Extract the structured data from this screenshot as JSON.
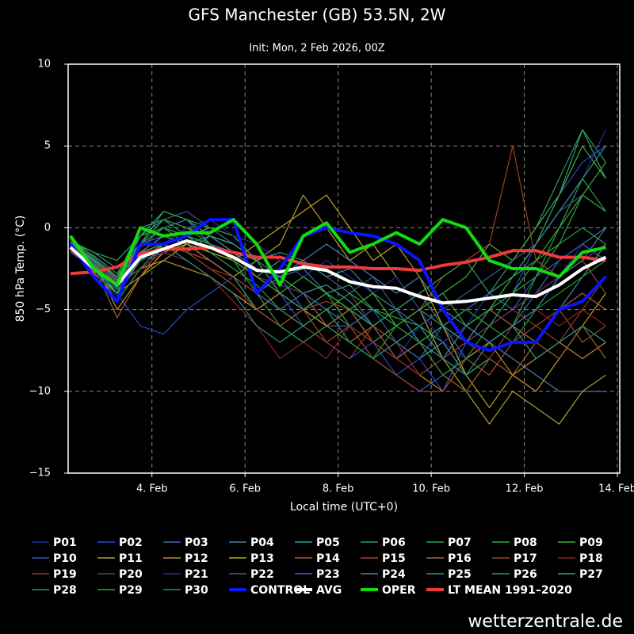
{
  "chart_data": {
    "type": "line",
    "title": "GFS Manchester (GB) 53.5N, 2W",
    "subtitle": "Init: Mon, 2 Feb 2026, 00Z",
    "xlabel": "Local time (UTC+0)",
    "ylabel": "850 hPa Temp. (°C)",
    "source": "wetterzentrale.de",
    "grid": true,
    "xlim": [
      2.2,
      14.05
    ],
    "xticks": [
      {
        "value": 4,
        "label": "4. Feb"
      },
      {
        "value": 6,
        "label": "6. Feb"
      },
      {
        "value": 8,
        "label": "8. Feb"
      },
      {
        "value": 10,
        "label": "10. Feb"
      },
      {
        "value": 12,
        "label": "12. Feb"
      },
      {
        "value": 14,
        "label": "14. Feb"
      }
    ],
    "ylim": [
      -15,
      10
    ],
    "yticks": [
      {
        "value": -15,
        "label": "−15"
      },
      {
        "value": -10,
        "label": "−10"
      },
      {
        "value": -5,
        "label": "−5"
      },
      0,
      5,
      10
    ],
    "x": [
      2.25,
      2.75,
      3.25,
      3.75,
      4.25,
      4.75,
      5.25,
      5.75,
      6.25,
      6.75,
      7.25,
      7.75,
      8.25,
      8.75,
      9.25,
      9.75,
      10.25,
      10.75,
      11.25,
      11.75,
      12.25,
      12.75,
      13.25,
      13.75
    ],
    "series": [
      {
        "name": "P01",
        "color": "#1a2fa0",
        "values": [
          -1,
          -2,
          -3,
          -1.5,
          -1,
          -0.5,
          -1,
          -2,
          -3,
          -4,
          -5,
          -6,
          -5,
          -7,
          -8,
          -6,
          -7,
          -8,
          -9,
          -7,
          -5,
          -3,
          -1,
          -2
        ]
      },
      {
        "name": "P02",
        "color": "#2848c8",
        "values": [
          -1.5,
          -2.5,
          -4,
          -6,
          -6.5,
          -5,
          -4,
          -3,
          -5,
          -4,
          -6,
          -7,
          -8,
          -7,
          -9,
          -8,
          -10,
          -7,
          -6,
          -4,
          -1,
          2,
          4,
          5
        ]
      },
      {
        "name": "P03",
        "color": "#3a6ab8",
        "values": [
          -1,
          -2,
          -3,
          -1,
          -0.5,
          -1,
          -2,
          -3,
          -4,
          -3,
          -5,
          -6,
          -6,
          -7,
          -8,
          -7,
          -6,
          -8,
          -7,
          -6,
          -4,
          -2,
          -1,
          0
        ]
      },
      {
        "name": "P04",
        "color": "#4a7fa8",
        "values": [
          -0.8,
          -1.5,
          -2.5,
          -1,
          0,
          0.5,
          -1,
          -1.5,
          -2,
          -3,
          -2.5,
          -4,
          -5,
          -6,
          -5,
          -7,
          -8,
          -6,
          -7,
          -8,
          -9,
          -10,
          -10,
          -10
        ]
      },
      {
        "name": "P05",
        "color": "#3a90a8",
        "values": [
          -1.2,
          -2,
          -3.5,
          -2,
          -1,
          -1.5,
          -0.5,
          -1,
          -2,
          -3,
          -4,
          -3.5,
          -4.5,
          -6,
          -7,
          -8,
          -7,
          -9,
          -8,
          -6,
          -7,
          -5,
          -3,
          -1
        ]
      },
      {
        "name": "P06",
        "color": "#2a9a6a",
        "values": [
          -0.7,
          -1.8,
          -3,
          0,
          0.5,
          -0.5,
          -1.5,
          -2,
          -3,
          -2,
          -3,
          -4,
          -3.5,
          -5,
          -6,
          -5,
          -6,
          -5,
          -4,
          -2,
          0,
          3,
          6,
          4
        ]
      },
      {
        "name": "P07",
        "color": "#2aa050",
        "values": [
          -1,
          -2.2,
          -4,
          -1,
          1,
          0.5,
          0,
          -1,
          -2,
          -4,
          -5,
          -6,
          -5,
          -6,
          -7,
          -6,
          -8,
          -9,
          -8,
          -6,
          -3,
          0,
          3,
          1
        ]
      },
      {
        "name": "P08",
        "color": "#30a840",
        "values": [
          -0.9,
          -1.5,
          -2,
          -0.5,
          0,
          -1,
          -2,
          -3,
          -5,
          -6,
          -5,
          -4,
          -6,
          -5,
          -5.5,
          -6,
          -7,
          -6,
          -5,
          -4,
          -2,
          -1,
          2,
          4
        ]
      },
      {
        "name": "P09",
        "color": "#40b040",
        "values": [
          -1.1,
          -2,
          -3,
          -1.5,
          -1,
          -0.5,
          0,
          -0.5,
          -2,
          -3,
          -4,
          -5,
          -6,
          -7,
          -6,
          -5,
          -4,
          -3,
          -1,
          -2,
          0,
          2,
          5,
          3
        ]
      },
      {
        "name": "P10",
        "color": "#2060c0",
        "values": [
          -1.3,
          -2.5,
          -3.8,
          -2,
          -1.5,
          -2,
          -3,
          -4,
          -5,
          -6,
          -7,
          -6,
          -7,
          -8,
          -9,
          -10,
          -9,
          -8,
          -7,
          -6,
          -8,
          -7,
          -6,
          -7
        ]
      },
      {
        "name": "P11",
        "color": "#b0a030",
        "values": [
          -1,
          -2,
          -3.5,
          -2.5,
          -2,
          -1,
          -2,
          -3,
          -2,
          -1,
          2,
          0,
          -2,
          -1,
          -3,
          -5,
          -8,
          -10,
          -12,
          -10,
          -11,
          -12,
          -10,
          -9
        ]
      },
      {
        "name": "P12",
        "color": "#c08a30",
        "values": [
          -1.2,
          -2.8,
          -4,
          -3,
          -2,
          -2.5,
          -3,
          -4,
          -5,
          -4,
          -5,
          -6,
          -5,
          -7,
          -8,
          -9,
          -10,
          -8,
          -7,
          -9,
          -8,
          -7,
          -8,
          -7
        ]
      },
      {
        "name": "P13",
        "color": "#c0a020",
        "values": [
          -0.9,
          -2,
          -5,
          -3,
          -1.5,
          -1,
          -1.5,
          -2,
          -1,
          0,
          1,
          2,
          0,
          -2,
          -1,
          -3,
          -6,
          -9,
          -11,
          -9,
          -10,
          -8,
          -6,
          -4
        ]
      },
      {
        "name": "P14",
        "color": "#a06030",
        "values": [
          -1,
          -2.3,
          -5.5,
          -3,
          -1,
          -1.5,
          -2,
          -3,
          -4,
          -6,
          -7,
          -6,
          -5,
          -7,
          -8,
          -7,
          -9,
          -10,
          -8,
          -9,
          -7,
          -8,
          -6,
          -8
        ]
      },
      {
        "name": "P15",
        "color": "#a04828",
        "values": [
          -1.4,
          -2.6,
          -3.2,
          -2,
          -1,
          -1.5,
          -2.5,
          -3.5,
          -5,
          -6,
          -5,
          -7,
          -6,
          -8,
          -9,
          -10,
          -10,
          -8,
          -9,
          -7,
          -6,
          -5,
          -7,
          -6
        ]
      },
      {
        "name": "P16",
        "color": "#b06048",
        "values": [
          -1,
          -2,
          -3,
          -1.5,
          -0.5,
          -1,
          -2,
          -3,
          -4,
          -5,
          -4,
          -6,
          -7,
          -6,
          -8,
          -7,
          -6,
          -7,
          -5,
          -6,
          -7,
          -5,
          -4,
          -5
        ]
      },
      {
        "name": "P17",
        "color": "#a04020",
        "values": [
          -1.1,
          -2.4,
          -3.6,
          -2,
          -1,
          0,
          -0.5,
          -1.5,
          -3,
          -4,
          -5,
          -4.5,
          -5,
          -4,
          -6,
          -5,
          -3,
          -2,
          -1,
          5,
          -2,
          -3,
          -2,
          -4
        ]
      },
      {
        "name": "P18",
        "color": "#902020",
        "values": [
          -1.2,
          -2.1,
          -3.4,
          -2.5,
          -1.5,
          -2,
          -3,
          -4.5,
          -6,
          -8,
          -7,
          -8,
          -6,
          -7,
          -8,
          -9,
          -8,
          -7,
          -8,
          -6,
          -5,
          -6,
          -5,
          -6
        ]
      },
      {
        "name": "P19",
        "color": "#8a3a28",
        "values": [
          -0.8,
          -1.9,
          -3.1,
          -2,
          -1,
          -1.5,
          -2.5,
          -3,
          -4,
          -5,
          -6,
          -7,
          -8,
          -6,
          -7,
          -9,
          -8,
          -7,
          -6,
          -5,
          -6,
          -7,
          -5,
          -3
        ]
      },
      {
        "name": "P20",
        "color": "#6a3a60",
        "values": [
          -1,
          -2.2,
          -3.3,
          -1.8,
          -1,
          -0.5,
          -1,
          -2,
          -3,
          -3.5,
          -4,
          -5,
          -4,
          -6,
          -5,
          -6,
          -5,
          -7,
          -6,
          -5,
          -4,
          -3,
          -2,
          -1
        ]
      },
      {
        "name": "P21",
        "color": "#20309a",
        "values": [
          -1.3,
          -2.7,
          -4.2,
          -2,
          -1,
          0,
          0.5,
          -0.5,
          -1,
          -2,
          -3,
          -2,
          -3,
          -4,
          -3,
          -5,
          -7,
          -6,
          -4,
          -3,
          -1,
          1,
          3,
          6
        ]
      },
      {
        "name": "P22",
        "color": "#3a5a90",
        "values": [
          -1,
          -2,
          -3.3,
          -1,
          0.5,
          1,
          0,
          -1,
          -2,
          -3,
          -2,
          -3,
          -4,
          -3,
          -5,
          -6,
          -5,
          -4,
          -3,
          -2,
          -1,
          1,
          2,
          1
        ]
      },
      {
        "name": "P23",
        "color": "#3060b0",
        "values": [
          -0.9,
          -2.1,
          -3.7,
          -1.2,
          0,
          -0.5,
          -1,
          -2,
          -4,
          -5,
          -4,
          -5,
          -6,
          -5,
          -7,
          -8,
          -6,
          -5,
          -4,
          -5,
          -3,
          -2,
          -1,
          -2
        ]
      },
      {
        "name": "P24",
        "color": "#4080b0",
        "values": [
          -1.1,
          -2.3,
          -3.5,
          -0.5,
          0.5,
          0,
          -0.5,
          -1.5,
          -2.5,
          -3,
          -2,
          -1,
          -2,
          -3,
          -4,
          -3,
          -5,
          -6,
          -7,
          -6,
          -5,
          -3,
          -2,
          0
        ]
      },
      {
        "name": "P25",
        "color": "#309090",
        "values": [
          -1,
          -1.9,
          -3.2,
          -1.5,
          -0.5,
          -1,
          -0.5,
          -1,
          -2,
          -1.5,
          -2,
          -3,
          -2.5,
          -4,
          -5,
          -4,
          -6,
          -7,
          -5,
          -3,
          -1,
          1,
          3,
          5
        ]
      },
      {
        "name": "P26",
        "color": "#2a9078",
        "values": [
          -1.2,
          -2.4,
          -4.5,
          -2.5,
          -1,
          -2,
          -3,
          -4,
          -6,
          -7,
          -6,
          -5,
          -7,
          -8,
          -7,
          -6,
          -8,
          -9,
          -7,
          -6,
          -8,
          -7,
          -6,
          -7
        ]
      },
      {
        "name": "P27",
        "color": "#30a060",
        "values": [
          -0.9,
          -1.7,
          -2.8,
          -0.5,
          1,
          0.5,
          -0.5,
          -1,
          -2,
          -4,
          -5,
          -4,
          -5,
          -6,
          -5,
          -4,
          -3,
          -2,
          -4,
          -3,
          -1,
          2,
          6,
          3
        ]
      },
      {
        "name": "P28",
        "color": "#28a048",
        "values": [
          -1,
          -2,
          -3,
          -1,
          0,
          -0.5,
          -1.5,
          -2.5,
          -3.5,
          -5,
          -6,
          -5,
          -4,
          -5,
          -6,
          -7,
          -6,
          -5,
          -6,
          -4,
          -3,
          -1,
          0,
          -1
        ]
      },
      {
        "name": "P29",
        "color": "#38a838",
        "values": [
          -1.1,
          -2.5,
          -4,
          -2,
          -1,
          -0.5,
          -1,
          -2,
          -3,
          -4,
          -3,
          -4,
          -5,
          -4,
          -6,
          -5,
          -4,
          -6,
          -5,
          -3,
          -2,
          0,
          2,
          1
        ]
      },
      {
        "name": "P30",
        "color": "#209a30",
        "values": [
          -1.2,
          -2.2,
          -3.6,
          -1,
          0.5,
          0,
          -1,
          -2,
          -4,
          -6,
          -7,
          -6,
          -7,
          -8,
          -6,
          -7,
          -9,
          -8,
          -6,
          -7,
          -5,
          -4,
          -3,
          -2
        ]
      },
      {
        "name": "CONTROL",
        "color": "#0a14ff",
        "values": [
          -1,
          -3,
          -4.5,
          -1,
          -1,
          -0.5,
          0.5,
          0.5,
          -4,
          -2.5,
          -0.5,
          0,
          -0.3,
          -0.5,
          -1,
          -2,
          -5,
          -7,
          -7.5,
          -7,
          -7,
          -5,
          -4.5,
          -3
        ]
      },
      {
        "name": "AVG",
        "color": "#ffffff",
        "values": [
          -1.2,
          -2.5,
          -3.5,
          -1.8,
          -1.3,
          -0.8,
          -1.2,
          -1.8,
          -2.6,
          -2.7,
          -2.4,
          -2.6,
          -3.3,
          -3.6,
          -3.7,
          -4.2,
          -4.6,
          -4.5,
          -4.3,
          -4.1,
          -4.2,
          -3.5,
          -2.5,
          -1.8
        ]
      },
      {
        "name": "OPER",
        "color": "#10dd10",
        "values": [
          -0.5,
          -2.5,
          -3.5,
          0,
          -0.5,
          -0.3,
          -0.3,
          0.5,
          -1,
          -3.5,
          -0.5,
          0.3,
          -1.5,
          -1,
          -0.3,
          -1,
          0.5,
          0,
          -2,
          -2.5,
          -2.5,
          -3,
          -1.5,
          -1.2
        ]
      },
      {
        "name": "LT MEAN 1991–2020",
        "color": "#ee3a3a",
        "values": [
          -2.8,
          -2.7,
          -2.4,
          -1.6,
          -1.3,
          -1.3,
          -1.2,
          -1.5,
          -1.8,
          -1.8,
          -2.2,
          -2.4,
          -2.4,
          -2.5,
          -2.5,
          -2.6,
          -2.3,
          -2.1,
          -1.8,
          -1.4,
          -1.4,
          -1.8,
          -1.8,
          -2.0
        ]
      }
    ]
  }
}
